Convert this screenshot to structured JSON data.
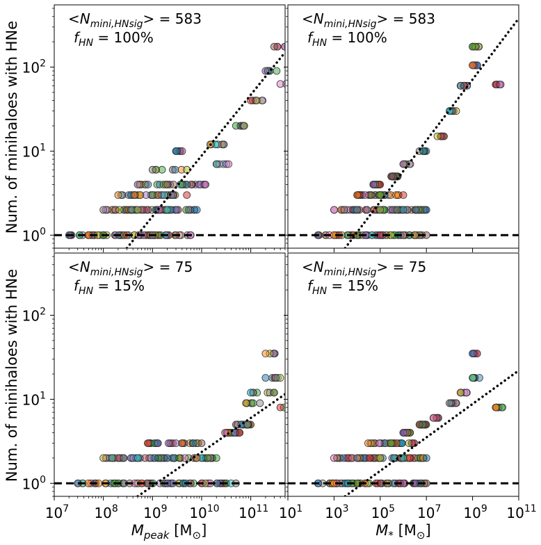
{
  "figure": {
    "ylabel": "Num. of minihaloes with HNe",
    "xlabel_left": "M_peak [M_⊙]",
    "xlabel_right": "M_* [M_⊙]"
  },
  "chart_data": [
    {
      "type": "scatter",
      "panel": "top-left",
      "annotation_line1": "<N_mini,HNsig> = 583",
      "annotation_line2": "f_HN = 100%",
      "x_scale": "log",
      "y_scale": "log",
      "xlim": [
        10000000.0,
        500000000000.0
      ],
      "ylim": [
        0.7,
        550
      ],
      "x_ticks": [
        "10^7",
        "10^8",
        "10^9",
        "10^10",
        "10^11"
      ],
      "y_ticks": [
        "10^0",
        "10^1",
        "10^2"
      ],
      "reference_line_y": 1,
      "fit_line": [
        [
          300000000.0,
          0.7
        ],
        [
          500000000000.0,
          150
        ]
      ],
      "description_of_points": "thousands of colored circles; y=1 spans M_peak 2e7–5e9, y=2 spans 1e8–1e10, y grows to ~175 at 3e11",
      "points": [
        [
          20000000.0,
          1
        ],
        [
          50000000.0,
          1
        ],
        [
          100000000.0,
          1
        ],
        [
          300000000.0,
          1
        ],
        [
          1000000000.0,
          1
        ],
        [
          3000000000.0,
          1
        ],
        [
          6000000000.0,
          1
        ],
        [
          100000000.0,
          2
        ],
        [
          500000000.0,
          2
        ],
        [
          2000000000.0,
          2
        ],
        [
          8000000000.0,
          2
        ],
        [
          200000000.0,
          3
        ],
        [
          1000000000.0,
          3
        ],
        [
          5000000000.0,
          3
        ],
        [
          500000000.0,
          4
        ],
        [
          2000000000.0,
          4
        ],
        [
          12000000000.0,
          4
        ],
        [
          1000000000.0,
          6
        ],
        [
          5000000000.0,
          6
        ],
        [
          20000000000.0,
          7
        ],
        [
          3000000000.0,
          10
        ],
        [
          15000000000.0,
          12
        ],
        [
          50000000000.0,
          20
        ],
        [
          100000000000.0,
          40
        ],
        [
          200000000000.0,
          90
        ],
        [
          300000000000.0,
          175
        ],
        [
          400000000000.0,
          63
        ]
      ],
      "grid": false,
      "legend": "none"
    },
    {
      "type": "scatter",
      "panel": "top-right",
      "annotation_line1": "<N_mini,HNsig> = 583",
      "annotation_line2": "f_HN = 100%",
      "x_scale": "log",
      "y_scale": "log",
      "xlim": [
        10,
        100000000000.0
      ],
      "ylim": [
        0.7,
        550
      ],
      "x_ticks": [
        "10^1",
        "10^3",
        "10^5",
        "10^7",
        "10^9",
        "10^11"
      ],
      "y_ticks": [],
      "reference_line_y": 1,
      "fit_line": [
        [
          3000.0,
          0.7
        ],
        [
          100000000000.0,
          380
        ]
      ],
      "points": [
        [
          200,
          1
        ],
        [
          1000.0,
          1
        ],
        [
          10000.0,
          1
        ],
        [
          100000.0,
          1
        ],
        [
          1000000.0,
          1
        ],
        [
          10000000.0,
          1
        ],
        [
          1000.0,
          2
        ],
        [
          10000.0,
          2
        ],
        [
          100000.0,
          2
        ],
        [
          1000000.0,
          2
        ],
        [
          10000000.0,
          2
        ],
        [
          10000.0,
          3
        ],
        [
          100000.0,
          3
        ],
        [
          1000000.0,
          3
        ],
        [
          50000.0,
          4
        ],
        [
          300000.0,
          5
        ],
        [
          1000000.0,
          7
        ],
        [
          5000000.0,
          10
        ],
        [
          30000000.0,
          15
        ],
        [
          100000000.0,
          30
        ],
        [
          300000000.0,
          60
        ],
        [
          1000000000.0,
          105
        ],
        [
          1000000000.0,
          175
        ],
        [
          10000000000.0,
          62
        ]
      ],
      "grid": false,
      "legend": "none"
    },
    {
      "type": "scatter",
      "panel": "bottom-left",
      "annotation_line1": "<N_mini,HNsig> = 75",
      "annotation_line2": "f_HN = 15%",
      "x_scale": "log",
      "y_scale": "log",
      "xlim": [
        10000000.0,
        500000000000.0
      ],
      "ylim": [
        0.7,
        550
      ],
      "x_ticks": [
        "10^7",
        "10^8",
        "10^9",
        "10^10",
        "10^11"
      ],
      "y_ticks": [
        "10^0",
        "10^1",
        "10^2"
      ],
      "reference_line_y": 1,
      "fit_line": [
        [
          500000000.0,
          0.7
        ],
        [
          500000000000.0,
          11.5
        ]
      ],
      "points": [
        [
          30000000.0,
          1
        ],
        [
          80000000.0,
          1
        ],
        [
          200000000.0,
          1
        ],
        [
          600000000.0,
          1
        ],
        [
          2000000000.0,
          1
        ],
        [
          6000000000.0,
          1
        ],
        [
          15000000000.0,
          1
        ],
        [
          50000000000.0,
          1
        ],
        [
          100000000.0,
          2
        ],
        [
          500000000.0,
          2
        ],
        [
          2000000000.0,
          2
        ],
        [
          8000000000.0,
          2
        ],
        [
          20000000000.0,
          2
        ],
        [
          800000000.0,
          3
        ],
        [
          3000000000.0,
          3
        ],
        [
          10000000000.0,
          3
        ],
        [
          30000000000.0,
          4
        ],
        [
          50000000000.0,
          5
        ],
        [
          80000000000.0,
          9
        ],
        [
          100000000000.0,
          12
        ],
        [
          200000000000.0,
          18
        ],
        [
          200000000000.0,
          35
        ],
        [
          300000000000.0,
          12
        ],
        [
          400000000000.0,
          8
        ]
      ],
      "grid": false,
      "legend": "none"
    },
    {
      "type": "scatter",
      "panel": "bottom-right",
      "annotation_line1": "<N_mini,HNsig> = 75",
      "annotation_line2": "f_HN = 15%",
      "x_scale": "log",
      "y_scale": "log",
      "xlim": [
        10,
        100000000000.0
      ],
      "ylim": [
        0.7,
        550
      ],
      "x_ticks": [
        "10^1",
        "10^3",
        "10^5",
        "10^7",
        "10^9",
        "10^11"
      ],
      "y_ticks": [],
      "reference_line_y": 1,
      "fit_line": [
        [
          3000.0,
          0.7
        ],
        [
          100000000000.0,
          22
        ]
      ],
      "points": [
        [
          200,
          1
        ],
        [
          1000.0,
          1
        ],
        [
          10000.0,
          1
        ],
        [
          100000.0,
          1
        ],
        [
          1000000.0,
          1
        ],
        [
          10000000.0,
          1
        ],
        [
          1000.0,
          2
        ],
        [
          10000.0,
          2
        ],
        [
          100000.0,
          2
        ],
        [
          1000000.0,
          2
        ],
        [
          10000000.0,
          2
        ],
        [
          30000.0,
          3
        ],
        [
          300000.0,
          3
        ],
        [
          3000000.0,
          3
        ],
        [
          1000000.0,
          4
        ],
        [
          5000000.0,
          5
        ],
        [
          20000000.0,
          6
        ],
        [
          100000000.0,
          9
        ],
        [
          300000000.0,
          12
        ],
        [
          1000000000.0,
          18
        ],
        [
          1000000000.0,
          35
        ],
        [
          10000000000.0,
          8
        ]
      ],
      "grid": false,
      "legend": "none"
    }
  ],
  "palette": [
    "#1f77b4",
    "#ff7f0e",
    "#2ca02c",
    "#d62728",
    "#9467bd",
    "#8c564b",
    "#e377c2",
    "#7f7f7f",
    "#bcbd22",
    "#17becf"
  ]
}
